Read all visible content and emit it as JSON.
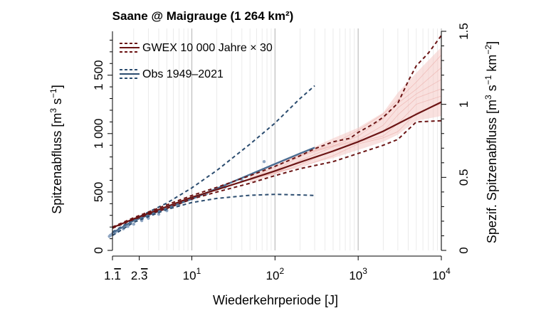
{
  "chart_data": {
    "type": "line",
    "title": "Saane @ Maigrauge (1 264 km²)",
    "xlabel": "Wiederkehrperiode [J]",
    "ylabel": {
      "main": "Spitzenabfluss [m",
      "sup1": "3",
      "mid": " s",
      "sup2": "−1",
      "end": "]"
    },
    "y2label": {
      "main": "Spezif. Spitzenabfluss [m",
      "sup1": "3",
      "mid1": " s",
      "sup2": "−1",
      "mid2": " km",
      "sup3": "−2",
      "end": "]"
    },
    "x_scale": "log",
    "xlim": [
      1.1111,
      10000
    ],
    "ylim": [
      0,
      1900
    ],
    "y2lim": [
      0,
      1.5
    ],
    "grid": "vertical, major and minor log lines",
    "x_ticks": [
      {
        "value": 1.1111,
        "base": "1.",
        "bar": "1"
      },
      {
        "value": 2.3333,
        "base": "2.",
        "bar": "3"
      },
      {
        "value": 10,
        "base": "10",
        "exp": "1"
      },
      {
        "value": 100,
        "base": "10",
        "exp": "2"
      },
      {
        "value": 1000,
        "base": "10",
        "exp": "3"
      },
      {
        "value": 10000,
        "base": "10",
        "exp": "4"
      }
    ],
    "y_ticks": [
      {
        "value": 0,
        "label": "0"
      },
      {
        "value": 500,
        "label": "500"
      },
      {
        "value": 1000,
        "label": "1 000"
      },
      {
        "value": 1500,
        "label": "1 500"
      }
    ],
    "y2_ticks": [
      {
        "value": 0,
        "label": "0"
      },
      {
        "value": 0.5,
        "label": "0.5"
      },
      {
        "value": 1,
        "label": "1"
      },
      {
        "value": 1.5,
        "label": "1.5"
      }
    ],
    "legend": {
      "placement": "top-left",
      "entries": [
        {
          "label": "GWEX 10 000 Jahre × 30",
          "color": "#6b1414"
        },
        {
          "label": "Obs 1949–2021",
          "color": "#2b4c6f"
        }
      ]
    },
    "colors": {
      "gwex": "#6b1414",
      "gwex_band": "#f4c9c5",
      "obs": "#2b4c6f",
      "obs_points": "#8fa6c3"
    },
    "series": {
      "gwex_median": {
        "x": [
          1.1111,
          2,
          5,
          10,
          20,
          50,
          100,
          200,
          500,
          1000,
          2000,
          5000,
          10000
        ],
        "y": [
          195,
          270,
          375,
          455,
          520,
          610,
          680,
          755,
          850,
          930,
          1020,
          1165,
          1270
        ]
      },
      "gwex_upper": {
        "x": [
          1.1111,
          2,
          5,
          10,
          20,
          50,
          100,
          200,
          300,
          500,
          800,
          1000,
          1500,
          2000,
          3000,
          4000,
          5000,
          7000,
          10000
        ],
        "y": [
          200,
          280,
          390,
          470,
          540,
          640,
          720,
          810,
          870,
          930,
          960,
          1010,
          1080,
          1140,
          1260,
          1450,
          1580,
          1690,
          1840
        ]
      },
      "gwex_lower": {
        "x": [
          1.1111,
          2,
          5,
          10,
          20,
          50,
          100,
          200,
          500,
          1000,
          2000,
          3000,
          5000,
          10000
        ],
        "y": [
          190,
          265,
          360,
          440,
          500,
          575,
          640,
          700,
          760,
          830,
          900,
          950,
          1100,
          1110
        ]
      },
      "gwex_band_upper": {
        "x": [
          50,
          100,
          200,
          500,
          1000,
          2000,
          3000,
          5000,
          10000
        ],
        "y": [
          650,
          730,
          830,
          960,
          1050,
          1180,
          1350,
          1520,
          1740
        ]
      },
      "gwex_band_lower": {
        "x": [
          50,
          100,
          200,
          500,
          1000,
          2000,
          3000,
          5000,
          10000
        ],
        "y": [
          580,
          650,
          720,
          790,
          860,
          930,
          990,
          1110,
          1150
        ]
      },
      "obs_fit": {
        "x": [
          1.1111,
          2,
          5,
          10,
          20,
          50,
          100,
          200,
          300
        ],
        "y": [
          150,
          255,
          360,
          440,
          530,
          650,
          740,
          830,
          880
        ]
      },
      "obs_upper": {
        "x": [
          1.1111,
          2,
          5,
          10,
          20,
          50,
          100,
          200,
          300
        ],
        "y": [
          158,
          265,
          405,
          535,
          685,
          910,
          1090,
          1300,
          1410
        ]
      },
      "obs_lower": {
        "x": [
          1.1111,
          2,
          5,
          10,
          20,
          50,
          100,
          200,
          300
        ],
        "y": [
          128,
          240,
          350,
          410,
          445,
          472,
          480,
          475,
          470
        ]
      },
      "obs_points": {
        "x": [
          1.02,
          1.05,
          1.1,
          1.2,
          1.3,
          1.5,
          1.7,
          2,
          2.5,
          3,
          4,
          5,
          7,
          10,
          15,
          25,
          40,
          74
        ],
        "y": [
          120,
          130,
          140,
          155,
          165,
          185,
          205,
          225,
          255,
          275,
          310,
          340,
          390,
          440,
          485,
          540,
          600,
          760
        ]
      }
    }
  }
}
